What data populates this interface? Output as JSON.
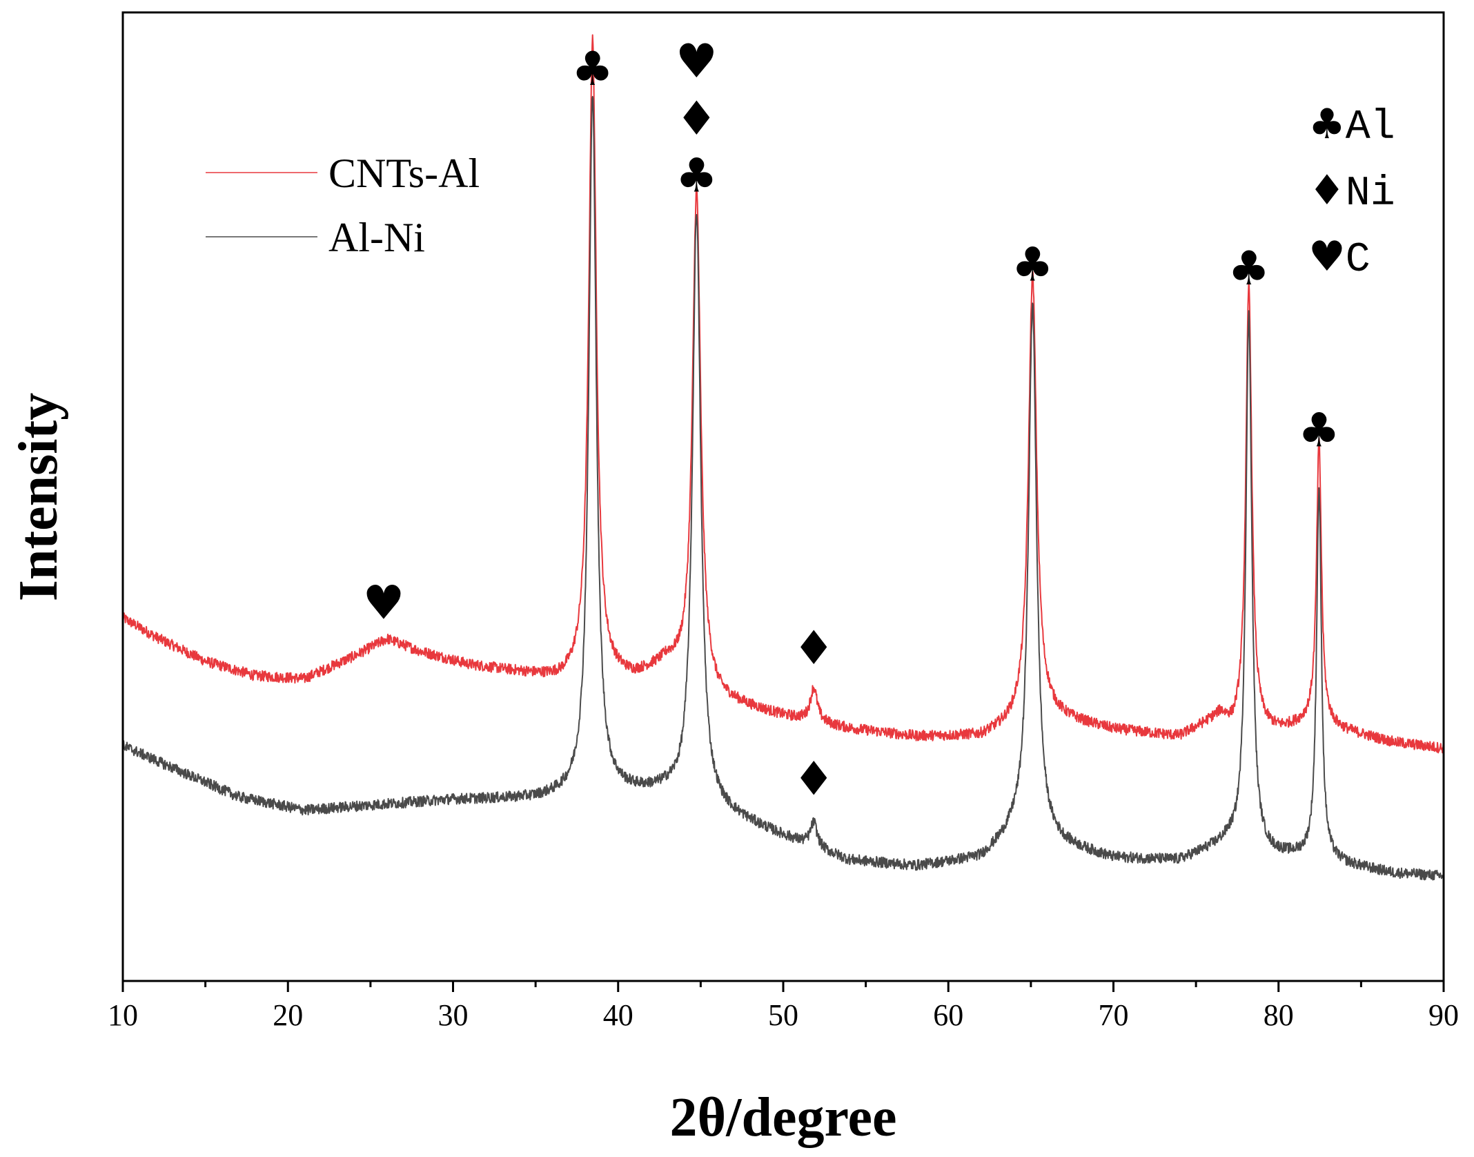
{
  "chart_data": {
    "type": "line",
    "title": "",
    "xlabel": "2θ/degree",
    "ylabel": "Intensity",
    "xlim": [
      10,
      90
    ],
    "ylim": [
      0,
      100
    ],
    "x_ticks": [
      10,
      20,
      30,
      40,
      50,
      60,
      70,
      80,
      90
    ],
    "x_tick_labels": [
      "10",
      "20",
      "30",
      "40",
      "50",
      "60",
      "70",
      "80",
      "90"
    ],
    "x_minor_step": 5,
    "y_ticks_shown": false,
    "grid": false,
    "legend": {
      "position": "top-left",
      "entries": [
        "CNTs-Al",
        "Al-Ni"
      ]
    },
    "series": [
      {
        "name": "CNTs-Al",
        "color": "#e8383d",
        "baseline": [
          [
            10,
            37.5
          ],
          [
            12,
            35.5
          ],
          [
            15,
            33.0
          ],
          [
            18,
            31.5
          ],
          [
            21,
            31.2
          ],
          [
            24,
            33.5
          ],
          [
            26,
            35.3
          ],
          [
            28,
            34.0
          ],
          [
            31,
            32.6
          ],
          [
            34,
            31.8
          ],
          [
            36.5,
            31.0
          ],
          [
            40,
            31.2
          ],
          [
            41,
            31.2
          ],
          [
            43,
            32.6
          ],
          [
            46,
            29.0
          ],
          [
            50,
            27.3
          ],
          [
            54,
            26.0
          ],
          [
            58,
            25.2
          ],
          [
            62,
            25.2
          ],
          [
            64,
            26.4
          ],
          [
            66,
            27.3
          ],
          [
            70,
            25.9
          ],
          [
            74,
            25.2
          ],
          [
            76.5,
            27.3
          ],
          [
            77.2,
            25.8
          ],
          [
            80,
            25.8
          ],
          [
            82,
            26.7
          ],
          [
            84,
            25.8
          ],
          [
            87,
            24.6
          ],
          [
            90,
            24.0
          ]
        ],
        "peaks": [
          {
            "x": 38.45,
            "height": 66,
            "width": 0.28
          },
          {
            "x": 44.75,
            "height": 51,
            "width": 0.3
          },
          {
            "x": 51.85,
            "height": 3.5,
            "width": 0.25
          },
          {
            "x": 65.1,
            "height": 46,
            "width": 0.3
          },
          {
            "x": 78.2,
            "height": 46,
            "width": 0.22
          },
          {
            "x": 82.45,
            "height": 29,
            "width": 0.18
          }
        ],
        "noise": 0.55
      },
      {
        "name": "Al-Ni",
        "color": "#4a4a4a",
        "baseline": [
          [
            10,
            24.3
          ],
          [
            13,
            22.0
          ],
          [
            17,
            19.0
          ],
          [
            21,
            17.6
          ],
          [
            24,
            18.0
          ],
          [
            30,
            18.7
          ],
          [
            35,
            18.8
          ],
          [
            37,
            19.1
          ],
          [
            40,
            19.4
          ],
          [
            43,
            19.4
          ],
          [
            46,
            17.6
          ],
          [
            50,
            14.9
          ],
          [
            54,
            12.4
          ],
          [
            58,
            11.8
          ],
          [
            62,
            12.6
          ],
          [
            64,
            15.1
          ],
          [
            66,
            14.3
          ],
          [
            70,
            12.6
          ],
          [
            74,
            12.4
          ],
          [
            77,
            14.3
          ],
          [
            79.5,
            13.0
          ],
          [
            82,
            12.7
          ],
          [
            84,
            12.0
          ],
          [
            87,
            11.1
          ],
          [
            90,
            10.8
          ]
        ],
        "peaks": [
          {
            "x": 38.45,
            "height": 72,
            "width": 0.28
          },
          {
            "x": 44.75,
            "height": 61,
            "width": 0.3
          },
          {
            "x": 51.85,
            "height": 2.5,
            "width": 0.25
          },
          {
            "x": 65.1,
            "height": 55,
            "width": 0.3
          },
          {
            "x": 78.2,
            "height": 55,
            "width": 0.22
          },
          {
            "x": 82.45,
            "height": 38,
            "width": 0.18
          }
        ],
        "noise": 0.55
      }
    ],
    "annotations": [
      {
        "x": 25.8,
        "y": 37.4,
        "marker": "heart",
        "symbol": "♥"
      },
      {
        "x": 38.45,
        "y": 92.5,
        "marker": "club",
        "symbol": "♣"
      },
      {
        "x": 44.75,
        "y": 81.5,
        "marker": "club",
        "symbol": "♣"
      },
      {
        "x": 44.75,
        "y": 87.4,
        "marker": "diamond",
        "symbol": "♦"
      },
      {
        "x": 44.75,
        "y": 93.3,
        "marker": "heart",
        "symbol": "♥"
      },
      {
        "x": 51.85,
        "y": 32.7,
        "marker": "diamond",
        "symbol": "♦"
      },
      {
        "x": 51.85,
        "y": 19.2,
        "marker": "diamond",
        "symbol": "♦"
      },
      {
        "x": 65.1,
        "y": 72.3,
        "marker": "club",
        "symbol": "♣"
      },
      {
        "x": 78.2,
        "y": 71.9,
        "marker": "club",
        "symbol": "♣"
      },
      {
        "x": 82.45,
        "y": 55.2,
        "marker": "club",
        "symbol": "♣"
      }
    ],
    "phase_key": [
      {
        "symbol": "♣",
        "label": "Al"
      },
      {
        "symbol": "♦",
        "label": "Ni"
      },
      {
        "symbol": "♥",
        "label": "C"
      }
    ]
  }
}
